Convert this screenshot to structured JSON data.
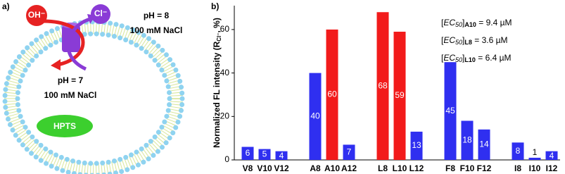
{
  "panel_a": {
    "label": "a)",
    "ion_out": "OH⁻",
    "ion_in": "Cl⁻",
    "outside": [
      "pH = 8",
      "100 mM NaCl"
    ],
    "inside": [
      "pH = 7",
      "100 mM NaCl"
    ],
    "dye": "HPTS"
  },
  "chart_data": {
    "type": "bar",
    "panel_label": "b)",
    "ylabel_parts": [
      "Normalized FL intensity (R",
      "Cl⁻",
      ", %)"
    ],
    "categories": [
      "V8",
      "V10",
      "V12",
      null,
      "A8",
      "A10",
      "A12",
      null,
      "L8",
      "L10",
      "L12",
      null,
      "F8",
      "F10",
      "F12",
      null,
      "I8",
      "I10",
      "I12"
    ],
    "values": [
      6,
      5,
      4,
      null,
      40,
      60,
      7,
      null,
      68,
      59,
      13,
      null,
      45,
      18,
      14,
      null,
      8,
      1,
      4
    ],
    "colors": [
      "#2f2ff0",
      "#2f2ff0",
      "#2f2ff0",
      null,
      "#2f2ff0",
      "#f21b1b",
      "#2f2ff0",
      null,
      "#f21b1b",
      "#f21b1b",
      "#2f2ff0",
      null,
      "#2f2ff0",
      "#2f2ff0",
      "#2f2ff0",
      null,
      "#2f2ff0",
      "#2f2ff0",
      "#2f2ff0"
    ],
    "ylim": [
      0,
      71
    ],
    "yticks": [
      0,
      20,
      40,
      60
    ],
    "annotations": [
      [
        "[",
        "EC",
        "50",
        "]",
        "A10",
        " = 9.4 µM"
      ],
      [
        "[",
        "EC",
        "50",
        "]",
        "L8",
        " = 3.6 µM"
      ],
      [
        "[",
        "EC",
        "50",
        "]",
        "L10",
        " = 6.4 µM"
      ]
    ]
  }
}
